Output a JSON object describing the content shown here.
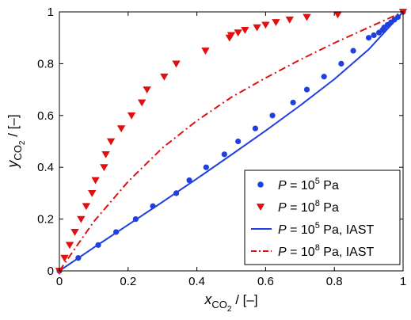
{
  "chart_data": {
    "type": "scatter",
    "xlabel": {
      "main": "x",
      "sub": "CO",
      "subsub": "2",
      "unit": " / [–]"
    },
    "ylabel": {
      "main": "y",
      "sub": "CO",
      "subsub": "2",
      "unit": " / [–]"
    },
    "xlim": [
      0,
      1
    ],
    "ylim": [
      0,
      1
    ],
    "xticks": [
      0,
      0.2,
      0.4,
      0.6,
      0.8,
      1
    ],
    "xtick_labels": [
      "0",
      "0.2",
      "0.4",
      "0.6",
      "0.8",
      "1"
    ],
    "yticks": [
      0,
      0.2,
      0.4,
      0.6,
      0.8,
      1
    ],
    "ytick_labels": [
      "0",
      "0.2",
      "0.4",
      "0.6",
      "0.8",
      "1"
    ],
    "grid": false,
    "legend_position": "bottom-right",
    "series": [
      {
        "name_parts": [
          "P",
          " = 10",
          "5",
          " Pa"
        ],
        "marker": "circle",
        "color": "#1f3fe0",
        "x": [
          0.0,
          0.055,
          0.113,
          0.165,
          0.222,
          0.272,
          0.34,
          0.378,
          0.427,
          0.48,
          0.52,
          0.57,
          0.62,
          0.68,
          0.72,
          0.77,
          0.82,
          0.855,
          0.9,
          0.915,
          0.93,
          0.94,
          0.945,
          0.955,
          0.965,
          0.975,
          0.985,
          1.0
        ],
        "y": [
          0.0,
          0.05,
          0.1,
          0.15,
          0.2,
          0.25,
          0.3,
          0.35,
          0.4,
          0.45,
          0.5,
          0.55,
          0.6,
          0.65,
          0.7,
          0.75,
          0.8,
          0.85,
          0.9,
          0.91,
          0.92,
          0.93,
          0.94,
          0.95,
          0.96,
          0.97,
          0.98,
          1.0
        ]
      },
      {
        "name_parts": [
          "P",
          " = 10",
          "8",
          " Pa"
        ],
        "marker": "triangle-down",
        "color": "#e01010",
        "x": [
          0.0,
          0.015,
          0.03,
          0.045,
          0.063,
          0.078,
          0.095,
          0.105,
          0.13,
          0.135,
          0.15,
          0.18,
          0.21,
          0.24,
          0.255,
          0.305,
          0.34,
          0.425,
          0.495,
          0.5,
          0.52,
          0.54,
          0.575,
          0.6,
          0.63,
          0.67,
          0.72,
          0.81,
          1.0
        ],
        "y": [
          0.0,
          0.05,
          0.1,
          0.15,
          0.2,
          0.25,
          0.3,
          0.35,
          0.4,
          0.45,
          0.5,
          0.55,
          0.6,
          0.65,
          0.7,
          0.75,
          0.8,
          0.85,
          0.9,
          0.91,
          0.92,
          0.93,
          0.94,
          0.95,
          0.96,
          0.97,
          0.98,
          0.99,
          1.0
        ]
      },
      {
        "name_parts": [
          "P",
          " = 10",
          "5",
          " Pa, IAST"
        ],
        "line": "solid",
        "color": "#1f3fe0",
        "x": [
          0,
          0.1,
          0.2,
          0.3,
          0.4,
          0.5,
          0.6,
          0.7,
          0.8,
          0.9,
          1.0
        ],
        "y": [
          0,
          0.09,
          0.178,
          0.266,
          0.356,
          0.448,
          0.541,
          0.638,
          0.74,
          0.855,
          1.0
        ]
      },
      {
        "name_parts": [
          "P",
          " = 10",
          "8",
          " Pa, IAST"
        ],
        "line": "dashdot",
        "color": "#e01010",
        "x": [
          0,
          0.1,
          0.2,
          0.3,
          0.4,
          0.5,
          0.6,
          0.7,
          0.8,
          0.9,
          1.0
        ],
        "y": [
          0,
          0.19,
          0.345,
          0.475,
          0.58,
          0.67,
          0.745,
          0.815,
          0.88,
          0.94,
          1.0
        ]
      }
    ]
  }
}
